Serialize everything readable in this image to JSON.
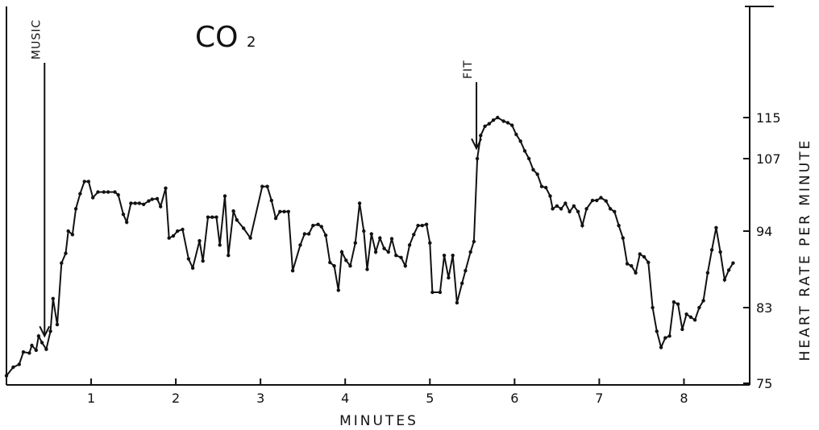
{
  "chart_data": {
    "type": "line",
    "title": "CO",
    "title_subscript": "2",
    "xlabel": "MINUTES",
    "ylabel": "HEART RATE PER MINUTE",
    "xlim": [
      0,
      8.7
    ],
    "ylim": [
      75,
      115
    ],
    "x_ticks": [
      1,
      2,
      3,
      4,
      5,
      6,
      7,
      8
    ],
    "x_tick_labels": [
      "1",
      "2",
      "3",
      "4",
      "5",
      "6",
      "7",
      "8"
    ],
    "y_ticks": [
      75,
      83,
      94,
      107,
      115
    ],
    "y_tick_labels": [
      "75",
      "83",
      "94",
      "107",
      "115"
    ],
    "grid": false,
    "annotations": [
      {
        "label": "MUSIC",
        "x": 0.45,
        "y": 80
      },
      {
        "label": "FIT",
        "x": 5.55,
        "y": 109
      }
    ],
    "series": [
      {
        "name": "",
        "color": "#111111",
        "points": [
          [
            0.0,
            75.8
          ],
          [
            0.08,
            76.7
          ],
          [
            0.15,
            77.0
          ],
          [
            0.2,
            78.3
          ],
          [
            0.27,
            78.2
          ],
          [
            0.3,
            79.0
          ],
          [
            0.35,
            78.5
          ],
          [
            0.38,
            80.0
          ],
          [
            0.42,
            79.3
          ],
          [
            0.47,
            78.6
          ],
          [
            0.52,
            80.5
          ],
          [
            0.55,
            84.3
          ],
          [
            0.6,
            81.2
          ],
          [
            0.65,
            89.4
          ],
          [
            0.7,
            90.8
          ],
          [
            0.73,
            94.0
          ],
          [
            0.78,
            93.5
          ],
          [
            0.82,
            98.0
          ],
          [
            0.87,
            100.7
          ],
          [
            0.92,
            102.9
          ],
          [
            0.97,
            102.9
          ],
          [
            1.02,
            100.0
          ],
          [
            1.08,
            101.0
          ],
          [
            1.15,
            101.0
          ],
          [
            1.2,
            101.0
          ],
          [
            1.28,
            101.0
          ],
          [
            1.32,
            100.5
          ],
          [
            1.38,
            97.0
          ],
          [
            1.42,
            95.6
          ],
          [
            1.47,
            99.0
          ],
          [
            1.52,
            99.0
          ],
          [
            1.57,
            99.0
          ],
          [
            1.62,
            98.8
          ],
          [
            1.68,
            99.4
          ],
          [
            1.72,
            99.7
          ],
          [
            1.78,
            99.8
          ],
          [
            1.82,
            98.4
          ],
          [
            1.88,
            101.7
          ],
          [
            1.92,
            93.0
          ],
          [
            1.97,
            93.3
          ],
          [
            2.02,
            94.0
          ],
          [
            2.08,
            94.3
          ],
          [
            2.15,
            90.0
          ],
          [
            2.2,
            88.7
          ],
          [
            2.28,
            92.6
          ],
          [
            2.32,
            89.7
          ],
          [
            2.38,
            96.5
          ],
          [
            2.43,
            96.5
          ],
          [
            2.48,
            96.5
          ],
          [
            2.52,
            92.0
          ],
          [
            2.58,
            100.3
          ],
          [
            2.62,
            90.5
          ],
          [
            2.68,
            97.6
          ],
          [
            2.72,
            96.0
          ],
          [
            2.8,
            94.5
          ],
          [
            2.88,
            93.0
          ],
          [
            3.02,
            102.0
          ],
          [
            3.08,
            102.0
          ],
          [
            3.13,
            99.5
          ],
          [
            3.18,
            96.3
          ],
          [
            3.23,
            97.5
          ],
          [
            3.28,
            97.5
          ],
          [
            3.33,
            97.5
          ],
          [
            3.38,
            88.3
          ],
          [
            3.47,
            92.0
          ],
          [
            3.52,
            93.6
          ],
          [
            3.57,
            93.6
          ],
          [
            3.62,
            95.0
          ],
          [
            3.68,
            95.2
          ],
          [
            3.72,
            94.8
          ],
          [
            3.77,
            93.4
          ],
          [
            3.82,
            89.5
          ],
          [
            3.87,
            89.0
          ],
          [
            3.92,
            85.5
          ],
          [
            3.96,
            91.0
          ],
          [
            4.01,
            89.8
          ],
          [
            4.06,
            89.0
          ],
          [
            4.12,
            92.3
          ],
          [
            4.17,
            99.0
          ],
          [
            4.22,
            94.0
          ],
          [
            4.26,
            88.5
          ],
          [
            4.31,
            93.6
          ],
          [
            4.36,
            91.0
          ],
          [
            4.41,
            93.0
          ],
          [
            4.46,
            91.5
          ],
          [
            4.51,
            91.0
          ],
          [
            4.55,
            92.9
          ],
          [
            4.6,
            90.5
          ],
          [
            4.66,
            90.2
          ],
          [
            4.71,
            89.0
          ],
          [
            4.76,
            92.0
          ],
          [
            4.81,
            93.5
          ],
          [
            4.86,
            95.0
          ],
          [
            4.91,
            95.0
          ],
          [
            4.96,
            95.2
          ],
          [
            5.0,
            92.3
          ],
          [
            5.03,
            85.2
          ],
          [
            5.12,
            85.2
          ],
          [
            5.17,
            90.5
          ],
          [
            5.22,
            87.3
          ],
          [
            5.27,
            90.5
          ],
          [
            5.32,
            83.7
          ],
          [
            5.38,
            86.5
          ],
          [
            5.42,
            88.3
          ],
          [
            5.48,
            91.0
          ],
          [
            5.52,
            92.5
          ],
          [
            5.56,
            107.0
          ],
          [
            5.6,
            111.5
          ],
          [
            5.65,
            113.3
          ],
          [
            5.7,
            113.8
          ],
          [
            5.75,
            114.5
          ],
          [
            5.8,
            115.0
          ],
          [
            5.87,
            114.3
          ],
          [
            5.92,
            114.0
          ],
          [
            5.97,
            113.5
          ],
          [
            6.02,
            111.7
          ],
          [
            6.07,
            110.4
          ],
          [
            6.12,
            108.5
          ],
          [
            6.17,
            107.0
          ],
          [
            6.22,
            105.0
          ],
          [
            6.27,
            104.2
          ],
          [
            6.32,
            102.0
          ],
          [
            6.37,
            101.8
          ],
          [
            6.42,
            100.3
          ],
          [
            6.45,
            98.0
          ],
          [
            6.5,
            98.5
          ],
          [
            6.55,
            98.0
          ],
          [
            6.6,
            99.0
          ],
          [
            6.65,
            97.5
          ],
          [
            6.7,
            98.5
          ],
          [
            6.75,
            97.5
          ],
          [
            6.8,
            95.0
          ],
          [
            6.85,
            98.0
          ],
          [
            6.92,
            99.5
          ],
          [
            6.97,
            99.5
          ],
          [
            7.02,
            100.0
          ],
          [
            7.08,
            99.4
          ],
          [
            7.13,
            98.0
          ],
          [
            7.18,
            97.5
          ],
          [
            7.23,
            95.0
          ],
          [
            7.28,
            93.0
          ],
          [
            7.33,
            89.3
          ],
          [
            7.38,
            89.0
          ],
          [
            7.43,
            88.0
          ],
          [
            7.48,
            90.7
          ],
          [
            7.53,
            90.3
          ],
          [
            7.58,
            89.5
          ],
          [
            7.63,
            83.0
          ],
          [
            7.68,
            80.5
          ],
          [
            7.73,
            78.8
          ],
          [
            7.78,
            79.8
          ],
          [
            7.83,
            80.0
          ],
          [
            7.88,
            83.8
          ],
          [
            7.93,
            83.5
          ],
          [
            7.98,
            80.7
          ],
          [
            8.03,
            82.3
          ],
          [
            8.08,
            82.0
          ],
          [
            8.13,
            81.7
          ],
          [
            8.18,
            83.0
          ],
          [
            8.23,
            84.0
          ],
          [
            8.28,
            88.0
          ],
          [
            8.33,
            91.3
          ],
          [
            8.38,
            94.6
          ],
          [
            8.43,
            91.0
          ],
          [
            8.48,
            87.0
          ],
          [
            8.53,
            88.4
          ],
          [
            8.58,
            89.4
          ]
        ]
      }
    ]
  }
}
